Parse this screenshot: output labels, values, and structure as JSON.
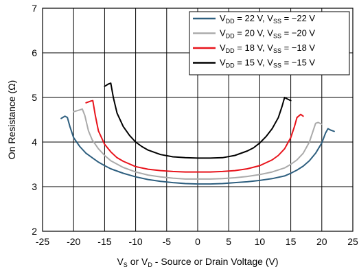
{
  "chart_data": {
    "type": "line",
    "xlabel": {
      "main": "V",
      "sub1": "S",
      "mid": " or V",
      "sub2": "D",
      "rest": " - Source or Drain Voltage (V)"
    },
    "ylabel": "On Resistance (Ω)",
    "xlim": [
      -25,
      25
    ],
    "ylim": [
      2,
      7
    ],
    "xticks": [
      -25,
      -20,
      -15,
      -10,
      -5,
      0,
      5,
      10,
      15,
      20,
      25
    ],
    "yticks": [
      2,
      3,
      4,
      5,
      6,
      7
    ],
    "grid": "major",
    "legend_position": "top-right",
    "series": [
      {
        "name": "VDD = 22 V, VSS = −22 V",
        "legend": {
          "vdd": "22",
          "vss": "−22"
        },
        "color": "#2E5F7F",
        "x": [
          -22,
          -21.4,
          -21.0,
          -20.6,
          -20.0,
          -19.0,
          -18.0,
          -17.0,
          -16.0,
          -15.0,
          -14.0,
          -12.0,
          -10.0,
          -8.0,
          -6.0,
          -4.0,
          -2.0,
          0,
          2.0,
          4.0,
          6.0,
          8.0,
          10.0,
          12.0,
          14.0,
          15.0,
          16.0,
          17.0,
          18.0,
          19.0,
          20.0,
          20.6,
          21.0,
          21.4,
          22.0
        ],
        "y": [
          4.53,
          4.58,
          4.55,
          4.35,
          4.1,
          3.9,
          3.75,
          3.65,
          3.55,
          3.47,
          3.4,
          3.3,
          3.22,
          3.16,
          3.12,
          3.09,
          3.07,
          3.06,
          3.06,
          3.07,
          3.09,
          3.11,
          3.14,
          3.18,
          3.24,
          3.3,
          3.37,
          3.46,
          3.58,
          3.75,
          3.98,
          4.2,
          4.3,
          4.27,
          4.24
        ]
      },
      {
        "name": "VDD = 20 V, VSS = −20 V",
        "legend": {
          "vdd": "20",
          "vss": "−20"
        },
        "color": "#AAAAAA",
        "x": [
          -20,
          -19.0,
          -18.6,
          -18.2,
          -17.6,
          -17.0,
          -16.0,
          -15.0,
          -14.0,
          -12.0,
          -10.0,
          -8.0,
          -6.0,
          -4.0,
          -2.0,
          0,
          2.0,
          4.0,
          6.0,
          8.0,
          10.0,
          12.0,
          14.0,
          15.0,
          16.0,
          17.0,
          18.0,
          18.6,
          19.0,
          19.4,
          20.0
        ],
        "y": [
          4.68,
          4.72,
          4.74,
          4.6,
          4.25,
          4.05,
          3.85,
          3.7,
          3.58,
          3.43,
          3.33,
          3.26,
          3.22,
          3.19,
          3.17,
          3.17,
          3.17,
          3.18,
          3.2,
          3.23,
          3.27,
          3.33,
          3.42,
          3.5,
          3.6,
          3.75,
          4.0,
          4.25,
          4.42,
          4.44,
          4.4
        ]
      },
      {
        "name": "VDD = 18 V, VSS = −18 V",
        "legend": {
          "vdd": "18",
          "vss": "−18"
        },
        "color": "#E8131B",
        "x": [
          -18,
          -17.2,
          -16.9,
          -16.5,
          -16.0,
          -15.0,
          -14.0,
          -13.0,
          -12.0,
          -10.0,
          -8.0,
          -6.0,
          -4.0,
          -2.0,
          0,
          2.0,
          4.0,
          6.0,
          8.0,
          10.0,
          12.0,
          13.0,
          14.0,
          15.0,
          15.6,
          16.0,
          16.6,
          17.0
        ],
        "y": [
          4.88,
          4.92,
          4.93,
          4.6,
          4.25,
          3.95,
          3.78,
          3.65,
          3.57,
          3.45,
          3.39,
          3.36,
          3.34,
          3.33,
          3.33,
          3.33,
          3.34,
          3.36,
          3.4,
          3.47,
          3.6,
          3.7,
          3.85,
          4.1,
          4.35,
          4.55,
          4.62,
          4.58
        ]
      },
      {
        "name": "VDD = 15 V, VSS = −15 V",
        "legend": {
          "vdd": "15",
          "vss": "−15"
        },
        "color": "#000000",
        "x": [
          -15,
          -14.4,
          -14.0,
          -13.6,
          -13.0,
          -12.0,
          -11.0,
          -10.0,
          -9.0,
          -8.0,
          -6.0,
          -4.0,
          -2.0,
          0,
          2.0,
          4.0,
          6.0,
          8.0,
          9.0,
          10.0,
          11.0,
          12.0,
          13.0,
          13.6,
          14.0,
          14.4,
          15.0
        ],
        "y": [
          5.25,
          5.3,
          5.32,
          5.0,
          4.65,
          4.35,
          4.15,
          4.0,
          3.9,
          3.82,
          3.72,
          3.67,
          3.65,
          3.64,
          3.64,
          3.65,
          3.7,
          3.8,
          3.87,
          3.98,
          4.12,
          4.3,
          4.55,
          4.8,
          5.0,
          4.97,
          4.93
        ]
      }
    ]
  }
}
